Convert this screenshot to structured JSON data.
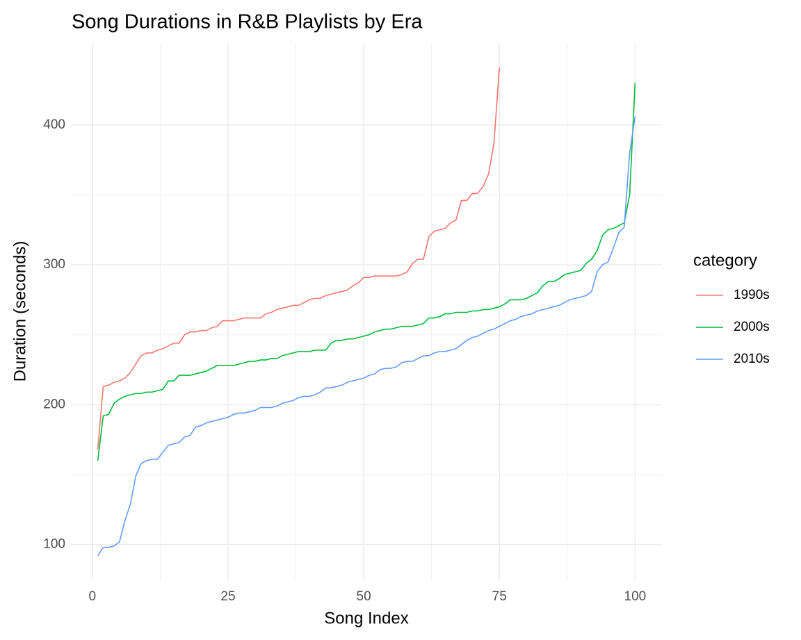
{
  "chart_data": {
    "type": "line",
    "title": "Song Durations in R&B Playlists by Era",
    "x_label": "Song Index",
    "y_label": "Duration (seconds)",
    "legend_title": "category",
    "legend_position": "right",
    "grid": true,
    "grid_minor": true,
    "xlim": [
      -3.95,
      104.95
    ],
    "xticks": [
      0,
      25,
      50,
      75,
      100
    ],
    "ylim": [
      74.5,
      458.5
    ],
    "yticks": [
      100,
      200,
      300,
      400
    ],
    "x": [
      1,
      2,
      3,
      4,
      5,
      6,
      7,
      8,
      9,
      10,
      11,
      12,
      13,
      14,
      15,
      16,
      17,
      18,
      19,
      20,
      21,
      22,
      23,
      24,
      25,
      26,
      27,
      28,
      29,
      30,
      31,
      32,
      33,
      34,
      35,
      36,
      37,
      38,
      39,
      40,
      41,
      42,
      43,
      44,
      45,
      46,
      47,
      48,
      49,
      50,
      51,
      52,
      53,
      54,
      55,
      56,
      57,
      58,
      59,
      60,
      61,
      62,
      63,
      64,
      65,
      66,
      67,
      68,
      69,
      70,
      71,
      72,
      73,
      74,
      75,
      76,
      77,
      78,
      79,
      80,
      81,
      82,
      83,
      84,
      85,
      86,
      87,
      88,
      89,
      90,
      91,
      92,
      93,
      94,
      95,
      96,
      97,
      98,
      99,
      100
    ],
    "series": [
      {
        "name": "1990s",
        "color": "#F8766D",
        "values": [
          168,
          213,
          214,
          216,
          217,
          219,
          223,
          229,
          235,
          237,
          237,
          239,
          240,
          242,
          244,
          244,
          250,
          252,
          252,
          253,
          253,
          255,
          256,
          260,
          260,
          260,
          261,
          262,
          262,
          262,
          262,
          265,
          266,
          268,
          269,
          270,
          271,
          271,
          273,
          275,
          276,
          276,
          278,
          279,
          280,
          281,
          282,
          285,
          287,
          291,
          291,
          292,
          292,
          292,
          292,
          292,
          293,
          295,
          301,
          304,
          304,
          320,
          324,
          325,
          326,
          330,
          332,
          346,
          346,
          351,
          351,
          356,
          365,
          387,
          441,
          null,
          null,
          null,
          null,
          null,
          null,
          null,
          null,
          null,
          null,
          null,
          null,
          null,
          null,
          null,
          null,
          null,
          null,
          null,
          null,
          null,
          null,
          null,
          null,
          null
        ]
      },
      {
        "name": "2000s",
        "color": "#00BA38",
        "values": [
          160,
          192,
          193,
          201,
          204,
          206,
          207,
          208,
          208,
          209,
          209,
          210,
          211,
          217,
          217,
          221,
          221,
          221,
          222,
          223,
          224,
          226,
          228,
          228,
          228,
          228,
          229,
          230,
          231,
          231,
          232,
          232,
          233,
          233,
          235,
          236,
          237,
          238,
          238,
          238,
          239,
          239,
          239,
          244,
          246,
          246,
          247,
          247,
          248,
          249,
          250,
          252,
          253,
          254,
          254,
          255,
          256,
          256,
          256,
          257,
          258,
          262,
          262,
          263,
          265,
          265,
          266,
          266,
          266,
          267,
          267,
          268,
          268,
          269,
          270,
          272,
          275,
          275,
          275,
          276,
          278,
          280,
          285,
          288,
          288,
          290,
          293,
          294,
          295,
          296,
          301,
          304,
          310,
          321,
          325,
          326,
          328,
          330,
          350,
          430
        ]
      },
      {
        "name": "2010s",
        "color": "#619CFF",
        "values": [
          92,
          98,
          98,
          99,
          102,
          117,
          129,
          149,
          158,
          160,
          161,
          161,
          166,
          171,
          172,
          173,
          177,
          178,
          184,
          185,
          187,
          188,
          189,
          190,
          191,
          193,
          194,
          194,
          195,
          196,
          198,
          198,
          198,
          199,
          201,
          202,
          203,
          205,
          206,
          206,
          207,
          209,
          212,
          212,
          213,
          214,
          216,
          217,
          218,
          219,
          221,
          222,
          225,
          226,
          226,
          227,
          230,
          231,
          231,
          233,
          235,
          235,
          237,
          238,
          238,
          239,
          240,
          243,
          246,
          248,
          249,
          251,
          253,
          254,
          256,
          258,
          260,
          261,
          263,
          264,
          265,
          267,
          268,
          269,
          270,
          271,
          273,
          275,
          276,
          277,
          278,
          281,
          295,
          300,
          302,
          312,
          323,
          327,
          380,
          406
        ]
      }
    ]
  }
}
